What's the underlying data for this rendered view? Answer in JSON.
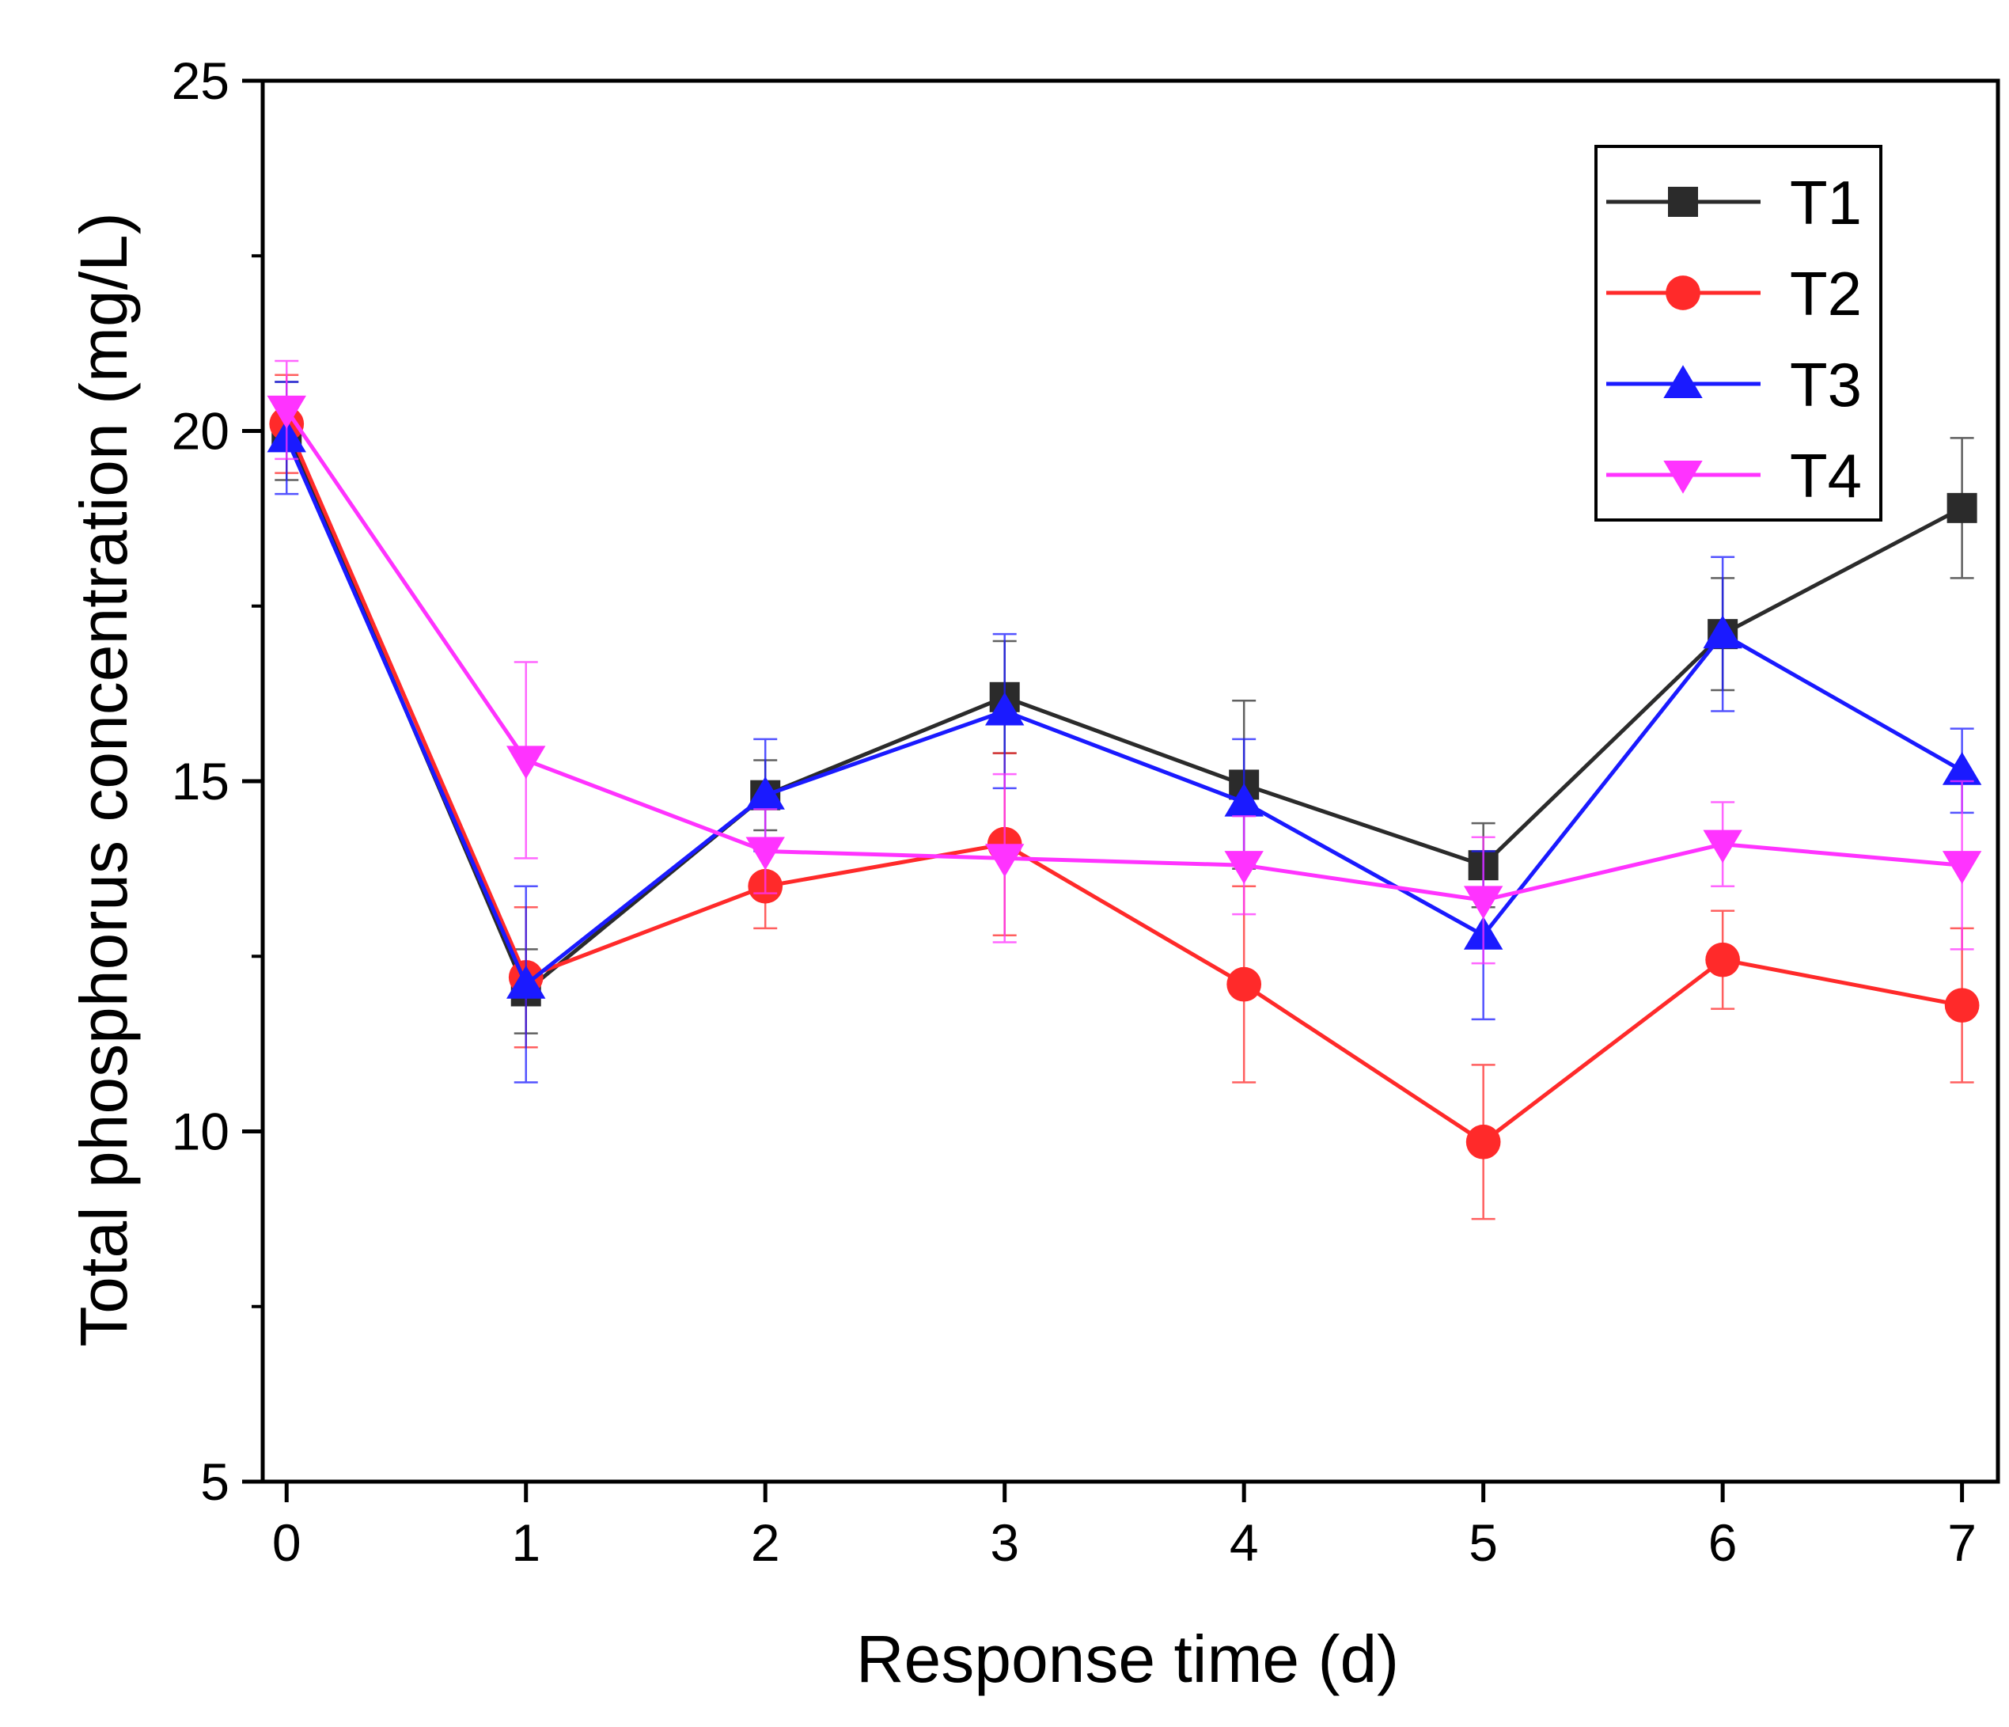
{
  "chart_data": {
    "type": "line",
    "xlabel": "Response time (d)",
    "ylabel": "Total phosphorus concentration (mg/L)",
    "x": [
      0,
      1,
      2,
      3,
      4,
      5,
      6,
      7
    ],
    "xlim": [
      -0.1,
      7.15
    ],
    "ylim": [
      5,
      25
    ],
    "xticks": [
      "0",
      "1",
      "2",
      "3",
      "4",
      "5",
      "6",
      "7"
    ],
    "yticks": [
      "5",
      "10",
      "15",
      "20",
      "25"
    ],
    "legend_position": "top-right",
    "grid": false,
    "series": [
      {
        "name": "T1",
        "color": "#2b2b2b",
        "marker": "square",
        "values": [
          20.0,
          12.0,
          14.8,
          16.2,
          14.95,
          13.8,
          17.1,
          18.9
        ],
        "errors": [
          0.7,
          0.6,
          0.5,
          0.8,
          1.2,
          0.6,
          0.8,
          1.0
        ]
      },
      {
        "name": "T2",
        "color": "#ff2a2a",
        "marker": "circle",
        "values": [
          20.1,
          12.2,
          13.5,
          14.1,
          12.1,
          9.85,
          12.45,
          11.8
        ],
        "errors": [
          0.7,
          1.0,
          0.6,
          1.3,
          1.4,
          1.1,
          0.7,
          1.1
        ]
      },
      {
        "name": "T3",
        "color": "#1a1aff",
        "marker": "triangle-up",
        "values": [
          19.9,
          12.1,
          14.8,
          16.0,
          14.7,
          12.8,
          17.1,
          15.15
        ],
        "errors": [
          0.8,
          1.4,
          0.8,
          1.1,
          0.9,
          1.2,
          1.1,
          0.6
        ]
      },
      {
        "name": "T4",
        "color": "#ff33ff",
        "marker": "triangle-down",
        "values": [
          20.3,
          15.3,
          14.0,
          13.9,
          13.8,
          13.3,
          14.1,
          13.8
        ],
        "errors": [
          0.7,
          1.4,
          0.6,
          1.2,
          0.7,
          0.9,
          0.6,
          1.2
        ]
      }
    ]
  }
}
